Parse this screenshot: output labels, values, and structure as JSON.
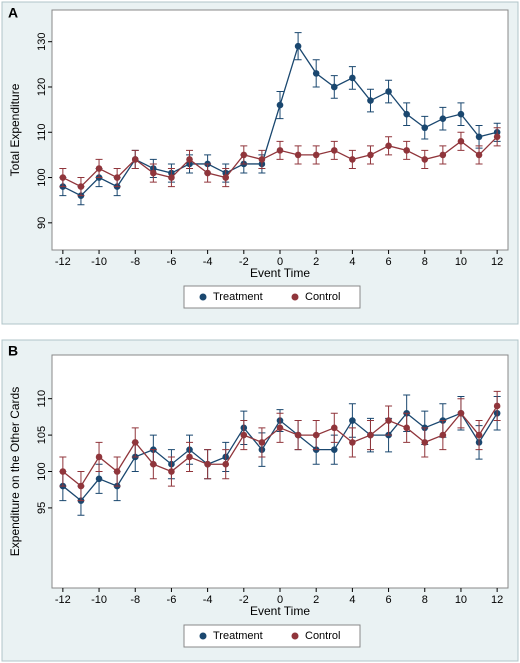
{
  "chart_data": [
    {
      "type": "line",
      "panel": "A",
      "ylabel": "Total Expenditure",
      "xlabel": "Event Time",
      "x": [
        -12,
        -11,
        -10,
        -9,
        -8,
        -7,
        -6,
        -5,
        -4,
        -3,
        -2,
        -1,
        0,
        1,
        2,
        3,
        4,
        5,
        6,
        7,
        8,
        9,
        10,
        11,
        12
      ],
      "xlim": [
        -12.6,
        12.6
      ],
      "xticks": [
        -12,
        -10,
        -8,
        -6,
        -4,
        -2,
        0,
        2,
        4,
        6,
        8,
        10,
        12
      ],
      "ylim": [
        84,
        137
      ],
      "yticks": [
        90,
        100,
        110,
        120,
        130
      ],
      "series": [
        {
          "name": "Treatment",
          "color": "#1a476f",
          "values": [
            98,
            96,
            100,
            98,
            104,
            102,
            101,
            103,
            103,
            101,
            103,
            103,
            116,
            129,
            123,
            120,
            122,
            117,
            119,
            114,
            111,
            113,
            114,
            109,
            110
          ],
          "errors": [
            2,
            2,
            2,
            2,
            2,
            2,
            2,
            2,
            2,
            2,
            2,
            2,
            3,
            3,
            3,
            2.5,
            2.5,
            2.5,
            2.5,
            2.5,
            2.5,
            2.5,
            2.5,
            2.5,
            2
          ]
        },
        {
          "name": "Control",
          "color": "#90353b",
          "values": [
            100,
            98,
            102,
            100,
            104,
            101,
            100,
            104,
            101,
            100,
            105,
            104,
            106,
            105,
            105,
            106,
            104,
            105,
            107,
            106,
            104,
            105,
            108,
            105,
            109
          ],
          "errors": [
            2,
            2,
            2,
            2,
            2,
            2,
            2,
            2,
            2,
            2,
            2,
            2,
            2,
            2,
            2,
            2,
            2,
            2,
            2,
            2,
            2,
            2,
            2,
            2,
            2
          ]
        }
      ]
    },
    {
      "type": "line",
      "panel": "B",
      "ylabel": "Expenditure on the Other Cards",
      "xlabel": "Event Time",
      "x": [
        -12,
        -11,
        -10,
        -9,
        -8,
        -7,
        -6,
        -5,
        -4,
        -3,
        -2,
        -1,
        0,
        1,
        2,
        3,
        4,
        5,
        6,
        7,
        8,
        9,
        10,
        11,
        12
      ],
      "xlim": [
        -12.6,
        12.6
      ],
      "xticks": [
        -12,
        -10,
        -8,
        -6,
        -4,
        -2,
        0,
        2,
        4,
        6,
        8,
        10,
        12
      ],
      "ylim": [
        84,
        116
      ],
      "yticks": [
        95,
        100,
        105,
        110
      ],
      "series": [
        {
          "name": "Treatment",
          "color": "#1a476f",
          "values": [
            98,
            96,
            99,
            98,
            102,
            103,
            101,
            103,
            101,
            102,
            106,
            103,
            107,
            105,
            103,
            103,
            107,
            105,
            105,
            108,
            106,
            107,
            108,
            104,
            108
          ],
          "errors": [
            2,
            2,
            2,
            2,
            2,
            2,
            2,
            2,
            2,
            2,
            2.3,
            2.3,
            1.5,
            2,
            2,
            2,
            2.3,
            2.3,
            2.3,
            2.5,
            2.3,
            2.3,
            2.3,
            2.3,
            2.3
          ]
        },
        {
          "name": "Control",
          "color": "#90353b",
          "values": [
            100,
            98,
            102,
            100,
            104,
            101,
            100,
            102,
            101,
            101,
            105,
            104,
            106,
            105,
            105,
            106,
            104,
            105,
            107,
            106,
            104,
            105,
            108,
            105,
            109
          ],
          "errors": [
            2,
            2,
            2,
            2,
            2,
            2,
            2,
            2,
            2,
            2,
            2,
            2,
            2,
            2,
            2,
            2,
            2,
            2,
            2,
            2,
            2,
            2,
            2,
            2,
            2
          ]
        }
      ]
    }
  ]
}
